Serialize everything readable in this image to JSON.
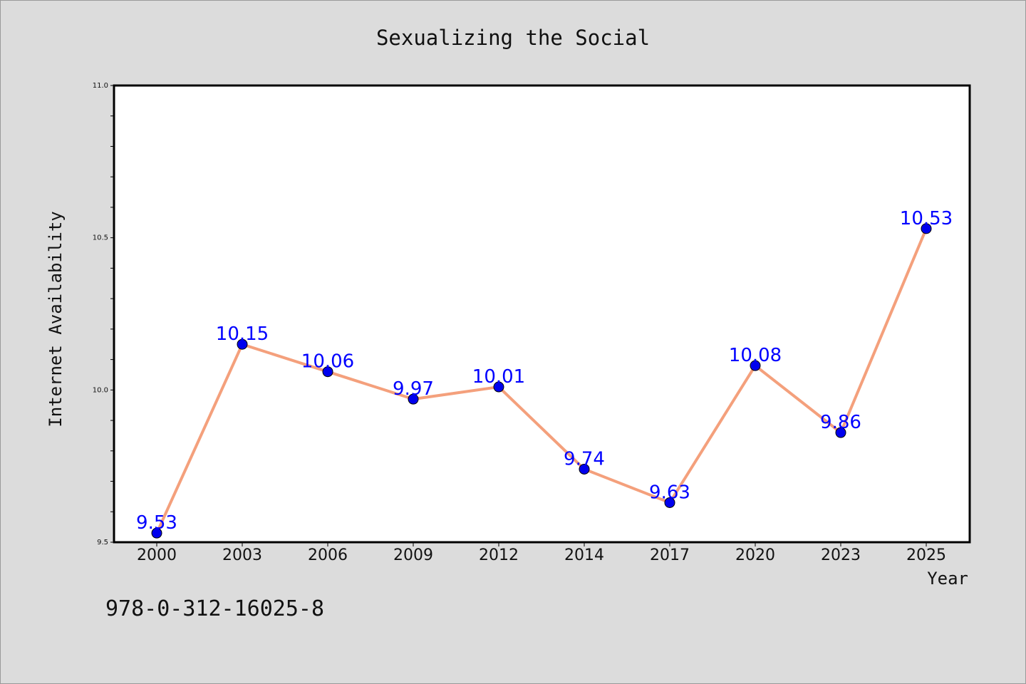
{
  "chart_data": {
    "type": "line",
    "title": "Sexualizing the Social",
    "xlabel": "Year",
    "ylabel": "Internet Availability",
    "categories": [
      "2000",
      "2003",
      "2006",
      "2009",
      "2012",
      "2014",
      "2017",
      "2020",
      "2023",
      "2025"
    ],
    "series": [
      {
        "values": [
          9.53,
          10.15,
          10.06,
          9.97,
          10.01,
          9.74,
          9.63,
          10.08,
          9.86,
          10.53
        ],
        "data_labels": [
          "9.53",
          "10.15",
          "10.06",
          "9.97",
          "10.01",
          "9.74",
          "9.63",
          "10.08",
          "9.86",
          "10.53"
        ],
        "line_color": "#f4a07c",
        "marker_color": "#0000ee"
      }
    ],
    "ylim": [
      9.5,
      11.0
    ],
    "yticks": [
      "9.5",
      "10.0",
      "10.5",
      "11.0"
    ],
    "grid": false,
    "label_color": "#0000ff"
  },
  "footer": {
    "isbn": "978-0-312-16025-8"
  }
}
